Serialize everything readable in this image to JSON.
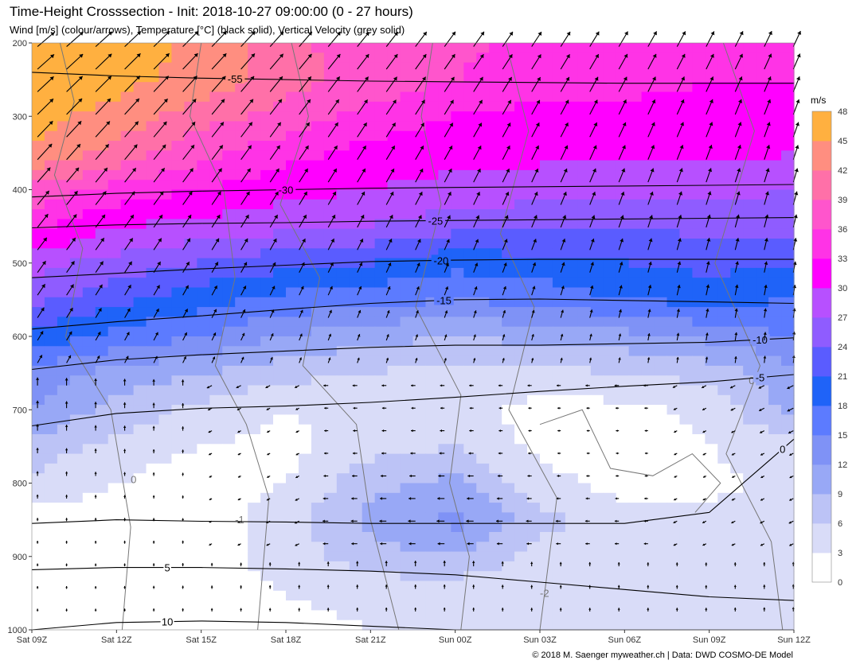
{
  "header": {
    "title": "Time-Height Crosssection - Init: 2018-10-27 09:00:00 (0 - 27 hours)",
    "subtitle": "Wind [m/s] (colour/arrows), Temperature [°C] (black solid), Vertical Velocity (grey solid)"
  },
  "footer": {
    "credit": "© 2018 M. Saenger myweather.ch | Data: DWD COSMO-DE Model"
  },
  "chart_data": {
    "type": "heatmap",
    "x_ticks": [
      "Sat 09Z",
      "Sat 12Z",
      "Sat 15Z",
      "Sat 18Z",
      "Sat 21Z",
      "Sun 00Z",
      "Sun 03Z",
      "Sun 06Z",
      "Sun 09Z",
      "Sun 12Z"
    ],
    "x_hours": [
      0,
      3,
      6,
      9,
      12,
      15,
      18,
      21,
      24,
      27
    ],
    "y_ticks": [
      200,
      300,
      400,
      500,
      600,
      700,
      800,
      900,
      1000
    ],
    "ylim": [
      200,
      1000
    ],
    "y_reversed": true,
    "colorbar": {
      "unit": "m/s",
      "levels": [
        0,
        3,
        6,
        9,
        12,
        15,
        18,
        21,
        24,
        27,
        30,
        33,
        36,
        39,
        42,
        45,
        48
      ],
      "colors": [
        "#ffffff",
        "#d9dcf8",
        "#bcc3f6",
        "#98a8f6",
        "#7f92f6",
        "#5c7bff",
        "#1f63f8",
        "#5a5cff",
        "#8f5cff",
        "#b750ff",
        "#ff00ff",
        "#ff33e6",
        "#ff55cc",
        "#ff70a8",
        "#ff8e80",
        "#ffb040",
        "#ffd700"
      ]
    },
    "wind_speed_profile": {
      "pressure_levels": [
        200,
        250,
        300,
        350,
        400,
        450,
        500,
        550,
        600,
        650,
        700,
        750,
        800,
        850,
        900,
        950,
        1000
      ],
      "hours": [
        0,
        3,
        6,
        9,
        12,
        15,
        18,
        21,
        24,
        27
      ],
      "values": [
        [
          47,
          47,
          44,
          40,
          37,
          37,
          35,
          35,
          34,
          34
        ],
        [
          47,
          46,
          44,
          40,
          38,
          36,
          34,
          34,
          33,
          33
        ],
        [
          46,
          44,
          40,
          38,
          35,
          33,
          32,
          32,
          32,
          31
        ],
        [
          45,
          41,
          37,
          34,
          32,
          31,
          31,
          31,
          31,
          30
        ],
        [
          38,
          35,
          33,
          31,
          30,
          29,
          28,
          28,
          28,
          27
        ],
        [
          34,
          30,
          29,
          28,
          27,
          25,
          25,
          24,
          25,
          25
        ],
        [
          28,
          26,
          24,
          22,
          21,
          19,
          20,
          21,
          22,
          21
        ],
        [
          25,
          22,
          19,
          17,
          16,
          15,
          16,
          18,
          19,
          18
        ],
        [
          20,
          17,
          15,
          12,
          10,
          9,
          10,
          11,
          13,
          15
        ],
        [
          14,
          11,
          9,
          7,
          6,
          5,
          5,
          6,
          7,
          11
        ],
        [
          12,
          8,
          5,
          3,
          4,
          4,
          2,
          2,
          4,
          10
        ],
        [
          8,
          5,
          3,
          2,
          5,
          6,
          2,
          1,
          3,
          5
        ],
        [
          5,
          3,
          1,
          3,
          8,
          10,
          4,
          2,
          2,
          4
        ],
        [
          2,
          2,
          1,
          5,
          10,
          13,
          7,
          4,
          4,
          6
        ],
        [
          1,
          1,
          2,
          4,
          8,
          9,
          5,
          4,
          3,
          4
        ],
        [
          1,
          1,
          2,
          3,
          4,
          4,
          3,
          3,
          3,
          5
        ],
        [
          1,
          1,
          2,
          2,
          3,
          3,
          3,
          3,
          3,
          4
        ]
      ]
    },
    "temperature_isotherms": [
      {
        "label": "-55",
        "pressure": [
          240,
          245,
          248,
          250,
          252,
          253,
          254,
          255,
          255,
          255
        ]
      },
      {
        "label": "-30",
        "pressure": [
          410,
          405,
          402,
          400,
          398,
          397,
          396,
          395,
          394,
          393
        ]
      },
      {
        "label": "-25",
        "pressure": [
          452,
          448,
          446,
          445,
          443,
          442,
          441,
          440,
          439,
          438
        ]
      },
      {
        "label": "-20",
        "pressure": [
          520,
          514,
          508,
          503,
          498,
          496,
          495,
          495,
          495,
          495
        ]
      },
      {
        "label": "-15",
        "pressure": [
          590,
          580,
          572,
          563,
          555,
          550,
          549,
          551,
          553,
          555
        ]
      },
      {
        "label": "-10",
        "pressure": [
          645,
          632,
          625,
          620,
          615,
          612,
          612,
          610,
          608,
          602
        ]
      },
      {
        "label": "-5",
        "pressure": [
          722,
          705,
          698,
          695,
          690,
          683,
          675,
          668,
          662,
          652
        ]
      },
      {
        "label": "0",
        "pressure": [
          855,
          850,
          852,
          853,
          855,
          855,
          855,
          855,
          840,
          740
        ]
      },
      {
        "label": "5",
        "pressure": [
          918,
          915,
          915,
          917,
          920,
          925,
          935,
          945,
          955,
          960
        ]
      },
      {
        "label": "10",
        "pressure": [
          1000,
          990,
          988,
          990,
          995,
          1000,
          1000,
          1000,
          1000,
          1000
        ]
      }
    ],
    "vertical_velocity_labels": [
      "0",
      "-1",
      "-2"
    ]
  }
}
